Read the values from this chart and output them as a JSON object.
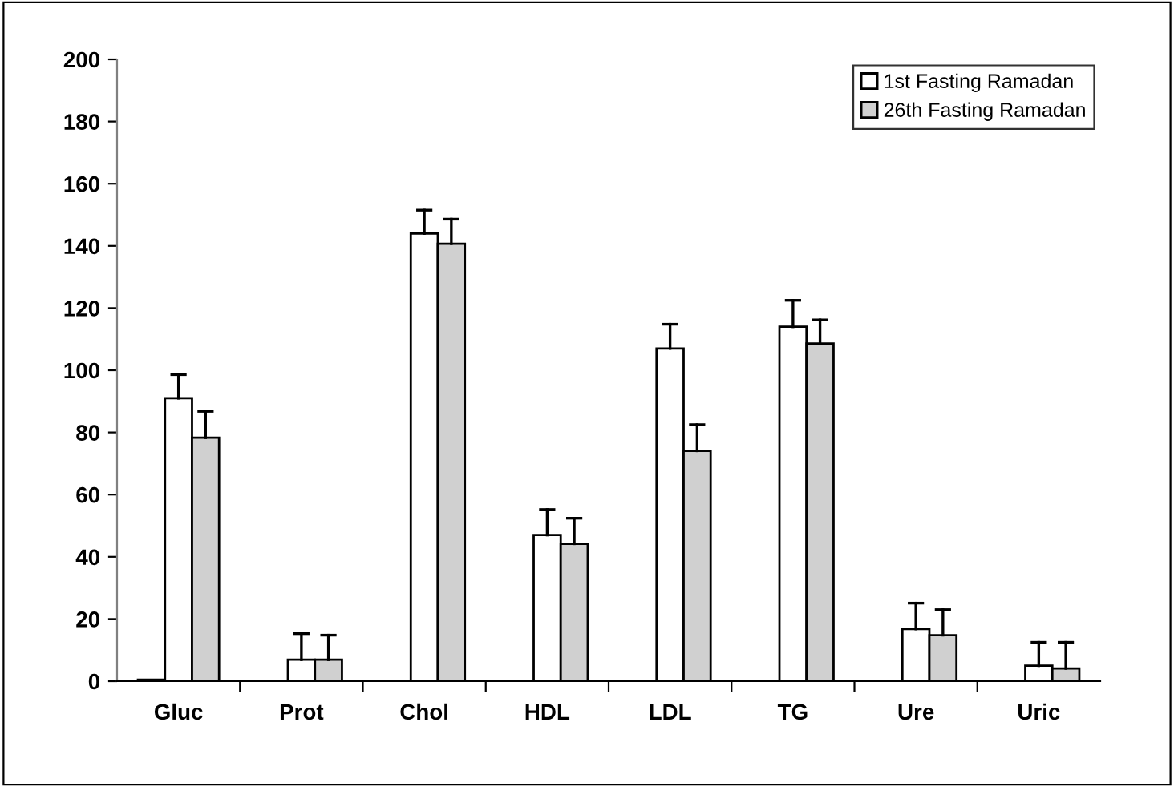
{
  "chart_data": {
    "type": "bar",
    "categories": [
      "Gluc",
      "Prot",
      "Chol",
      "HDL",
      "LDL",
      "TG",
      "Ure",
      "Uric"
    ],
    "series": [
      {
        "color": "#000000",
        "values": [
          0.5,
          null,
          null,
          null,
          null,
          null,
          null,
          null
        ]
      },
      {
        "name": "1st Fasting Ramadan",
        "color": "#ffffff",
        "values": [
          91,
          6.9,
          144,
          47,
          107,
          114,
          16.8,
          5
        ],
        "errors": [
          [
            91,
            98.6
          ],
          [
            6.9,
            15.3
          ],
          [
            144,
            151.5
          ],
          [
            47,
            55.2
          ],
          [
            107,
            114.8
          ],
          [
            114,
            122.5
          ],
          [
            16.8,
            25.1
          ],
          [
            5,
            12.5
          ]
        ]
      },
      {
        "name": "26th Fasting Ramadan",
        "color": "#d0d0d0",
        "values": [
          78.3,
          6.9,
          140.7,
          44.2,
          74.1,
          108.6,
          14.8,
          4.1
        ],
        "errors": [
          [
            78.3,
            86.8
          ],
          [
            6.9,
            14.8
          ],
          [
            140.7,
            148.6
          ],
          [
            44.2,
            52.4
          ],
          [
            74.1,
            82.5
          ],
          [
            108.6,
            116.2
          ],
          [
            14.8,
            23
          ],
          [
            4.1,
            12.5
          ]
        ]
      }
    ],
    "ylim": [
      0,
      200
    ],
    "yticks": [
      0,
      20,
      40,
      60,
      80,
      100,
      120,
      140,
      160,
      180,
      200
    ],
    "grid": false,
    "legend": "top right"
  }
}
